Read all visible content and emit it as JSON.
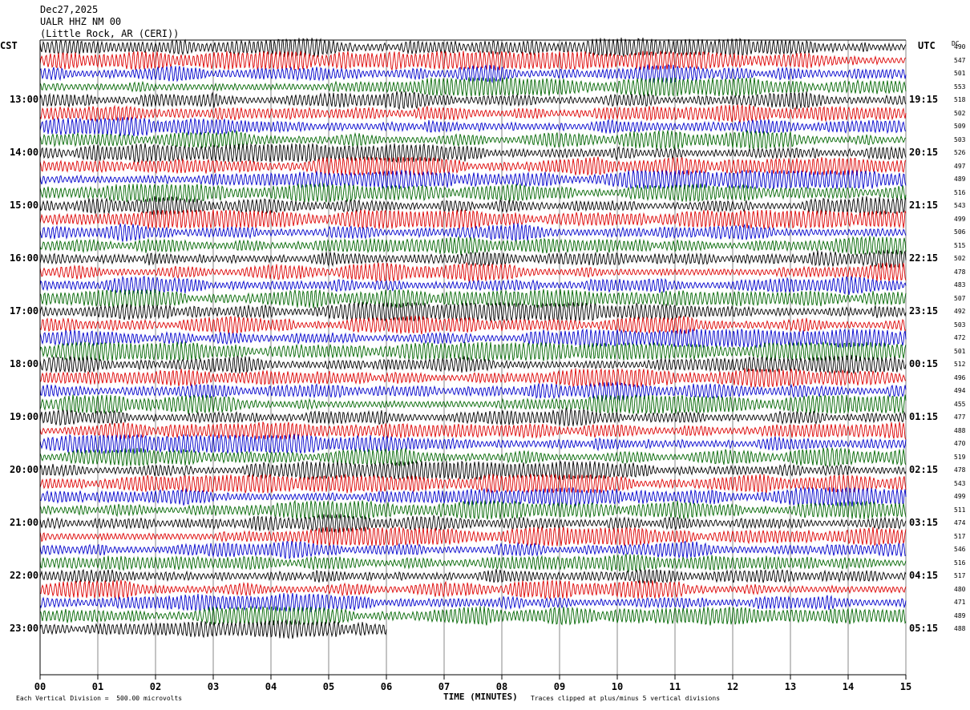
{
  "header": {
    "date": "Dec27,2025",
    "station": "UALR HHZ NM 00",
    "location": "(Little Rock, AR (CERI))"
  },
  "left_tz": "CST",
  "right_tz": "UTC",
  "dc_label": "DC",
  "footer": {
    "scale_note": "Each Vertical Division =  500.00 microvolts",
    "xlabel": "TIME (MINUTES)",
    "clip_note": "Traces clipped at plus/minus 5 vertical divisions"
  },
  "colors": {
    "trace_cycle": [
      "#000000",
      "#dd0000",
      "#0000cc",
      "#006600"
    ],
    "grid": "#888888"
  },
  "chart_data": {
    "type": "line",
    "title": "",
    "xlabel": "TIME (MINUTES)",
    "xlim": [
      0,
      15
    ],
    "x_ticks": [
      "00",
      "01",
      "02",
      "03",
      "04",
      "05",
      "06",
      "07",
      "08",
      "09",
      "10",
      "11",
      "12",
      "13",
      "14",
      "15"
    ],
    "trace_count": 45,
    "traces_per_hour": 4,
    "left_hour_labels": [
      "13:00",
      "14:00",
      "15:00",
      "16:00",
      "17:00",
      "18:00",
      "19:00",
      "20:00",
      "21:00",
      "22:00",
      "23:00"
    ],
    "right_hour_labels": [
      "19:15",
      "20:15",
      "21:15",
      "22:15",
      "23:15",
      "00:15",
      "01:15",
      "02:15",
      "03:15",
      "04:15",
      "05:15"
    ],
    "dc_values": [
      "490",
      "547",
      "501",
      "553",
      "518",
      "502",
      "509",
      "503",
      "526",
      "497",
      "489",
      "516",
      "543",
      "499",
      "506",
      "515",
      "502",
      "478",
      "483",
      "507",
      "492",
      "503",
      "472",
      "501",
      "512",
      "496",
      "494",
      "455",
      "477",
      "488",
      "470",
      "519",
      "478",
      "543",
      "499",
      "511",
      "474",
      "517",
      "546",
      "516",
      "517",
      "480",
      "471",
      "489",
      "488"
    ],
    "last_trace_end_minute": 6.0
  }
}
